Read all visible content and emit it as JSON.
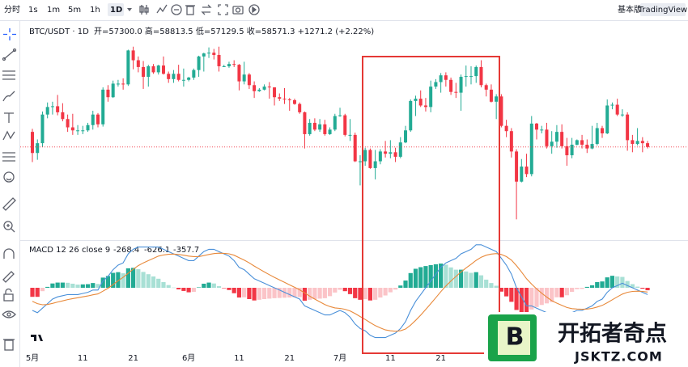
{
  "ui": {
    "toolbar": {
      "intervals": [
        "分时",
        "1s",
        "1m",
        "5m",
        "1h",
        "1D"
      ],
      "basic": "基本版",
      "brand": "TradingView"
    },
    "legend": {
      "symbol": "BTC/USDT · 1D",
      "ohlc": "开=57300.0 高=58813.5 低=57129.5 收=58571.3 +1271.2 (+2.22%)"
    },
    "macd_legend": {
      "name": "MACD 12 26 close 9",
      "hist": "-268.4",
      "macd": "-626.1",
      "signal": "-357.7"
    },
    "watermark": {
      "logo": "B",
      "title": "开拓者奇点",
      "site": "JSKTZ.COM"
    }
  },
  "chart_data": {
    "type": "candlestick",
    "categories": [
      "5月",
      null,
      null,
      null,
      null,
      null,
      null,
      null,
      null,
      null,
      "11",
      null,
      null,
      null,
      null,
      null,
      null,
      null,
      null,
      null,
      "21",
      null,
      null,
      null,
      null,
      null,
      null,
      null,
      null,
      null,
      null,
      "6月",
      null,
      null,
      null,
      null,
      null,
      null,
      null,
      null,
      null,
      "11",
      null,
      null,
      null,
      null,
      null,
      null,
      null,
      null,
      null,
      "21",
      null,
      null,
      null,
      null,
      null,
      null,
      null,
      null,
      null,
      "7月",
      null,
      null,
      null,
      null,
      null,
      null,
      null,
      null,
      null,
      "11",
      null,
      null,
      null,
      null,
      null,
      null,
      null,
      null,
      null,
      "21",
      null,
      null,
      null,
      null,
      null,
      null,
      null,
      null,
      null,
      null,
      null,
      null,
      null,
      null,
      null,
      null,
      null,
      null,
      null,
      null,
      null,
      null,
      null,
      null,
      null,
      null,
      null,
      null,
      null,
      null,
      null,
      null,
      null,
      null,
      null,
      null,
      null,
      null,
      null,
      null,
      null
    ],
    "open": [
      60600,
      57800,
      59100,
      62900,
      63900,
      64000,
      63200,
      62300,
      61200,
      60800,
      60800,
      60800,
      61500,
      62900,
      61600,
      66200,
      65200,
      67000,
      67000,
      66900,
      71400,
      70100,
      69200,
      67900,
      69300,
      68500,
      69400,
      68300,
      67600,
      68300,
      67500,
      67500,
      67800,
      68800,
      70600,
      71000,
      71100,
      70800,
      69300,
      69300,
      69600,
      69500,
      67300,
      68200,
      66800,
      66000,
      66200,
      66600,
      66500,
      65200,
      65000,
      64900,
      64800,
      64300,
      63200,
      60300,
      61800,
      60900,
      61600,
      60300,
      60900,
      62700,
      62800,
      60200,
      60200,
      56700,
      56700,
      58200,
      55800,
      56700,
      58000,
      57700,
      57900,
      57300,
      59200,
      60800,
      64700,
      65000,
      64100,
      63900,
      66600,
      67200,
      68100,
      67500,
      65900,
      65800,
      67900,
      68000,
      68000,
      69200,
      66800,
      66200,
      64600,
      65300,
      61400,
      60700,
      58000,
      54000,
      56000,
      55000,
      61700,
      60900,
      60900,
      58700,
      59300,
      60600,
      58700,
      57500,
      58900,
      59500,
      58900,
      58400,
      59000,
      61100,
      60400,
      64100,
      64200,
      62900,
      62900,
      59500,
      59000,
      59400,
      59100
    ],
    "high": [
      61000,
      59600,
      63300,
      64500,
      64600,
      65500,
      64400,
      62900,
      63000,
      61500,
      61400,
      61800,
      63400,
      63100,
      66500,
      66800,
      67400,
      67500,
      67700,
      71500,
      71900,
      70600,
      70000,
      69500,
      69600,
      69500,
      70600,
      68600,
      68800,
      69500,
      69000,
      67900,
      69000,
      70700,
      71100,
      71800,
      71600,
      71900,
      69500,
      69900,
      70100,
      69600,
      69900,
      68400,
      67300,
      66400,
      66900,
      67200,
      66500,
      65700,
      66400,
      65100,
      65000,
      64500,
      63300,
      62300,
      62400,
      62300,
      62200,
      61200,
      63000,
      63800,
      63000,
      62300,
      60500,
      57500,
      58500,
      58400,
      58200,
      58300,
      59400,
      59500,
      58500,
      59900,
      61400,
      64900,
      65400,
      66100,
      65100,
      67400,
      67600,
      68400,
      68500,
      67800,
      67100,
      68200,
      69400,
      69300,
      69400,
      70100,
      67000,
      66900,
      65600,
      65600,
      62200,
      61100,
      58300,
      57000,
      57700,
      62700,
      61800,
      61400,
      61800,
      60700,
      61500,
      61600,
      59800,
      59800,
      59600,
      60200,
      59600,
      61400,
      61800,
      61400,
      64900,
      64500,
      65000,
      63600,
      63200,
      60200,
      61100,
      59900,
      59400
    ],
    "low": [
      56600,
      56900,
      58600,
      62400,
      62900,
      62800,
      62000,
      60600,
      60200,
      60200,
      60300,
      60600,
      60900,
      61200,
      61300,
      64600,
      65100,
      66600,
      66200,
      66700,
      68900,
      68500,
      66300,
      66600,
      68300,
      68200,
      68200,
      67100,
      67100,
      67300,
      66600,
      67300,
      67500,
      67900,
      68600,
      70400,
      70200,
      68600,
      69200,
      69100,
      69200,
      66100,
      66900,
      66300,
      65100,
      65900,
      66100,
      65000,
      64100,
      64700,
      64300,
      63400,
      64200,
      63000,
      58400,
      60100,
      60700,
      60600,
      60100,
      60200,
      60700,
      62600,
      60000,
      59400,
      56600,
      53500,
      56100,
      55700,
      54300,
      56300,
      57200,
      57100,
      56600,
      57100,
      59100,
      60600,
      62700,
      63900,
      63300,
      63200,
      66300,
      65800,
      66600,
      65500,
      65100,
      63400,
      66600,
      66900,
      67100,
      66500,
      65300,
      64500,
      62300,
      61200,
      59900,
      57200,
      49000,
      53900,
      54600,
      54700,
      59600,
      60400,
      58400,
      57700,
      58500,
      58400,
      56100,
      57100,
      58800,
      58400,
      57800,
      58300,
      58800,
      59800,
      60300,
      63600,
      62700,
      62600,
      58100,
      57900,
      58800,
      57900,
      58400
    ],
    "close": [
      57800,
      59100,
      62900,
      63900,
      64000,
      63200,
      62300,
      61200,
      60800,
      60800,
      60800,
      61500,
      62900,
      61600,
      66200,
      65200,
      67000,
      67000,
      66900,
      71400,
      70100,
      69200,
      67900,
      69300,
      68500,
      69400,
      68300,
      67600,
      68300,
      67500,
      67500,
      67800,
      68800,
      70600,
      71000,
      71100,
      70800,
      69300,
      69300,
      69600,
      69500,
      67300,
      68200,
      66800,
      66000,
      66200,
      66600,
      66500,
      65200,
      65000,
      64900,
      64800,
      64300,
      63200,
      60300,
      61800,
      60900,
      61600,
      60300,
      60900,
      62700,
      62800,
      60200,
      60200,
      56700,
      56700,
      58200,
      55800,
      56700,
      58000,
      57700,
      57900,
      57300,
      59200,
      60800,
      64700,
      65000,
      64100,
      63900,
      66600,
      67200,
      68100,
      67500,
      65900,
      65800,
      67900,
      68000,
      68000,
      69200,
      66800,
      66200,
      64600,
      65300,
      61400,
      60700,
      58000,
      54000,
      56000,
      55000,
      61700,
      60900,
      60900,
      58700,
      59300,
      60600,
      58700,
      57500,
      58900,
      59500,
      58900,
      58400,
      59000,
      61100,
      60400,
      64100,
      64200,
      62900,
      62900,
      59500,
      59000,
      59400,
      59100,
      58600
    ],
    "up_color": "#22ab94",
    "down_color": "#f23645",
    "ylim": [
      47000,
      73800
    ],
    "last_price_line": true,
    "macd": {
      "dif": [
        -1000,
        -1100,
        -900,
        -700,
        -500,
        -400,
        -350,
        -300,
        -300,
        -300,
        -250,
        -200,
        -100,
        -100,
        300,
        500,
        800,
        1000,
        1100,
        1500,
        1700,
        1800,
        1800,
        1800,
        1800,
        1800,
        1700,
        1600,
        1500,
        1400,
        1300,
        1200,
        1200,
        1400,
        1600,
        1700,
        1700,
        1600,
        1500,
        1400,
        1200,
        900,
        800,
        600,
        400,
        300,
        200,
        100,
        0,
        -100,
        -200,
        -300,
        -400,
        -500,
        -800,
        -900,
        -1000,
        -1100,
        -1200,
        -1200,
        -1100,
        -1000,
        -1100,
        -1300,
        -1600,
        -1800,
        -1900,
        -2100,
        -2200,
        -2200,
        -2200,
        -2100,
        -2000,
        -1800,
        -1500,
        -1000,
        -600,
        -300,
        0,
        300,
        600,
        900,
        1100,
        1200,
        1300,
        1500,
        1600,
        1700,
        1900,
        1900,
        1800,
        1700,
        1600,
        1300,
        1000,
        600,
        0,
        -400,
        -800,
        -800,
        -900,
        -1000,
        -1100,
        -1200,
        -1100,
        -1200,
        -1200,
        -1100,
        -1000,
        -1000,
        -900,
        -800,
        -600,
        -500,
        -200,
        0,
        100,
        200,
        100,
        0,
        -100,
        -200,
        -300
      ],
      "signal": [
        -600,
        -700,
        -750,
        -740,
        -690,
        -630,
        -580,
        -520,
        -480,
        -440,
        -400,
        -360,
        -310,
        -270,
        -150,
        -20,
        140,
        310,
        460,
        640,
        820,
        980,
        1100,
        1200,
        1300,
        1400,
        1450,
        1480,
        1490,
        1470,
        1440,
        1400,
        1380,
        1380,
        1420,
        1470,
        1510,
        1530,
        1520,
        1500,
        1440,
        1330,
        1220,
        1100,
        960,
        830,
        700,
        580,
        460,
        350,
        240,
        130,
        20,
        -90,
        -230,
        -370,
        -500,
        -620,
        -740,
        -830,
        -890,
        -910,
        -950,
        -1020,
        -1140,
        -1270,
        -1400,
        -1540,
        -1670,
        -1770,
        -1860,
        -1900,
        -1920,
        -1900,
        -1820,
        -1650,
        -1440,
        -1210,
        -960,
        -700,
        -440,
        -170,
        80,
        300,
        500,
        700,
        880,
        1040,
        1210,
        1350,
        1440,
        1490,
        1510,
        1470,
        1380,
        1220,
        980,
        700,
        400,
        160,
        -50,
        -240,
        -410,
        -570,
        -680,
        -780,
        -870,
        -920,
        -940,
        -950,
        -940,
        -910,
        -850,
        -780,
        -660,
        -530,
        -400,
        -280,
        -200,
        -160,
        -150,
        -160,
        -190
      ],
      "hist": [
        -400,
        -400,
        -150,
        40,
        190,
        230,
        230,
        220,
        180,
        140,
        150,
        160,
        210,
        170,
        450,
        520,
        660,
        690,
        640,
        860,
        880,
        820,
        700,
        600,
        500,
        400,
        250,
        120,
        10,
        -70,
        -140,
        -200,
        -180,
        20,
        180,
        230,
        190,
        70,
        -20,
        -100,
        -240,
        -430,
        -420,
        -500,
        -560,
        -530,
        -500,
        -480,
        -460,
        -450,
        -440,
        -430,
        -420,
        -410,
        -570,
        -530,
        -500,
        -480,
        -460,
        -370,
        -210,
        -90,
        -150,
        -280,
        -460,
        -530,
        -500,
        -560,
        -530,
        -430,
        -340,
        -200,
        -80,
        100,
        320,
        650,
        840,
        910,
        960,
        1000,
        1040,
        1070,
        1020,
        900,
        800,
        800,
        720,
        660,
        690,
        550,
        360,
        210,
        90,
        -170,
        -380,
        -620,
        -980,
        -1100,
        -1200,
        -960,
        -850,
        -760,
        -690,
        -630,
        -420,
        -420,
        -330,
        -180,
        -60,
        -50,
        40,
        110,
        250,
        280,
        460,
        530,
        500,
        480,
        300,
        160,
        50,
        -40,
        -110
      ],
      "ylim": [
        -3000,
        2000
      ],
      "dif_color": "#4a90d9",
      "signal_color": "#e8893a",
      "hist_colors": [
        "#22ab94",
        "#a8e0d5",
        "#f23645",
        "#fbc4c8"
      ]
    }
  }
}
